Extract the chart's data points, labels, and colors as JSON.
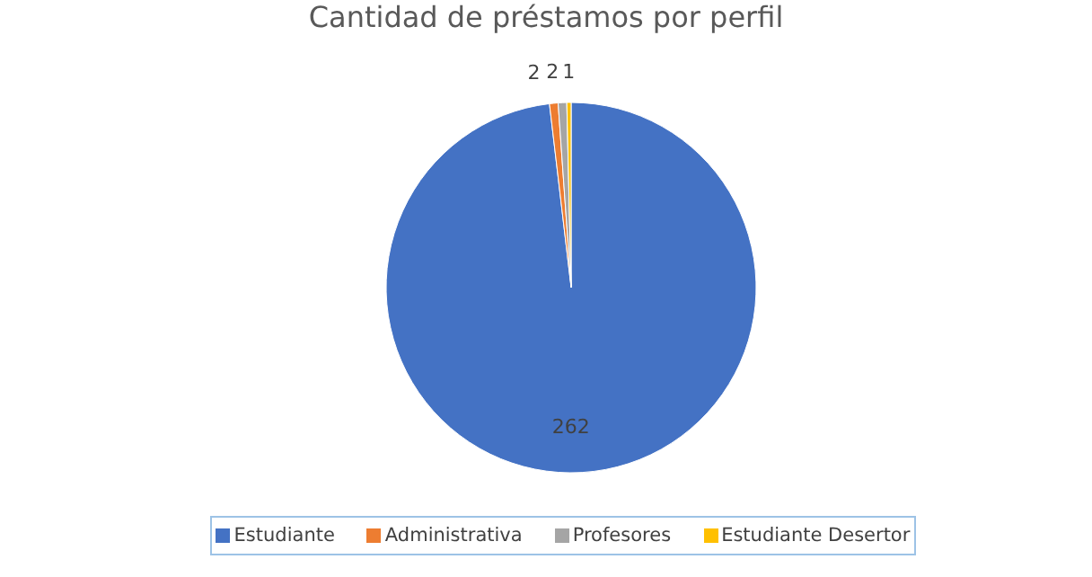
{
  "chart_data": {
    "type": "pie",
    "title": "Cantidad de préstamos por perfil",
    "categories": [
      "Estudiante",
      "Administrativa",
      "Profesores",
      "Estudiante Desertor"
    ],
    "values": [
      262,
      2,
      2,
      1
    ],
    "colors": [
      "#4472c4",
      "#ed7d31",
      "#a5a5a5",
      "#ffc000"
    ],
    "data_labels": true,
    "legend": "bottom"
  }
}
